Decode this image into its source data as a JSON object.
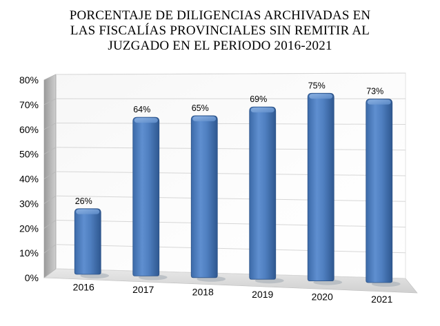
{
  "chart_data": {
    "type": "bar",
    "title_lines": [
      "PORCENTAJE DE DILIGENCIAS ARCHIVADAS EN",
      "LAS FISCALÍAS PROVINCIALES SIN REMITIR AL",
      "JUZGADO EN EL PERIODO 2016-2021"
    ],
    "categories": [
      "2016",
      "2017",
      "2018",
      "2019",
      "2020",
      "2021"
    ],
    "values": [
      26,
      64,
      65,
      69,
      75,
      73
    ],
    "data_labels": [
      "26%",
      "64%",
      "65%",
      "69%",
      "75%",
      "73%"
    ],
    "yticks": [
      "0%",
      "10%",
      "20%",
      "30%",
      "40%",
      "50%",
      "60%",
      "70%",
      "80%"
    ],
    "ylim": [
      0,
      80
    ],
    "grid": true,
    "legend": "none",
    "bar_color": "#4f81bd",
    "bar_dark": "#2b5287",
    "bar_light": "#7fa7d9"
  }
}
